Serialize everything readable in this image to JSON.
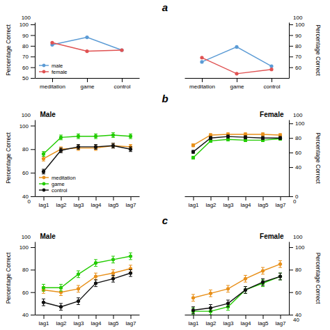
{
  "chart_data": [
    {
      "type": "line",
      "categories": [
        "meditation",
        "game",
        "control"
      ],
      "series": [
        {
          "name": "male",
          "color": "#5B9BD5",
          "values": [
            81,
            88,
            76
          ]
        },
        {
          "name": "female",
          "color": "#E05252",
          "values": [
            83,
            75,
            76
          ]
        }
      ],
      "ylabel": "Percentage Correct",
      "ylim": [
        50,
        102
      ],
      "yticks": [
        50,
        60,
        70,
        80,
        90,
        100
      ],
      "legend": "lower left",
      "marker": "circle",
      "annotations": [
        {
          "text": "100",
          "y": 102
        }
      ]
    },
    {
      "type": "line",
      "categories": [
        "meditation",
        "game",
        "control"
      ],
      "series": [
        {
          "color": "#5B9BD5",
          "values": [
            65,
            79,
            61
          ]
        },
        {
          "color": "#E05252",
          "values": [
            69,
            54,
            58
          ]
        }
      ],
      "ylabel": "Percentage Correct",
      "ylim": [
        50,
        102
      ],
      "yticks": [
        60,
        70,
        80,
        90,
        100
      ],
      "marker": "circle",
      "annotations": [
        {
          "text": "a"
        },
        {
          "text": "100",
          "y": 102
        }
      ]
    },
    {
      "type": "line",
      "title": "Male",
      "categories": [
        "lag1",
        "lag2",
        "lag3",
        "lag4",
        "lag5",
        "lag7"
      ],
      "series": [
        {
          "name": "meditation",
          "color": "#E8901A",
          "values": [
            72,
            80,
            81,
            81,
            83,
            82
          ],
          "errors": [
            2,
            2,
            2,
            2,
            2,
            2
          ]
        },
        {
          "name": "game",
          "color": "#22CC00",
          "values": [
            76,
            90,
            91,
            91,
            92,
            91
          ],
          "errors": [
            2,
            2,
            2,
            2,
            2,
            2
          ]
        },
        {
          "name": "control",
          "color": "#111111",
          "values": [
            61,
            79,
            82,
            82,
            83,
            80
          ],
          "errors": [
            2,
            2,
            2,
            2,
            2,
            2
          ]
        }
      ],
      "ylabel": "Percentage Correct",
      "ylim": [
        40,
        105
      ],
      "yticks": [
        40,
        60,
        80,
        100
      ],
      "legend": "lower left",
      "marker": "circle",
      "annotations": [
        {
          "text": "b"
        },
        {
          "text": "0",
          "y": 40
        },
        {
          "text": "100",
          "y": 105
        }
      ]
    },
    {
      "type": "line",
      "title": "Female",
      "categories": [
        "lag1",
        "lag2",
        "lag3",
        "lag4",
        "lag5",
        "lag7"
      ],
      "series": [
        {
          "color": "#E8901A",
          "values": [
            70,
            84,
            85,
            85,
            85,
            84
          ],
          "errors": [
            2,
            2,
            2,
            2,
            2,
            2
          ]
        },
        {
          "color": "#22CC00",
          "values": [
            53,
            76,
            78,
            77,
            77,
            79
          ],
          "errors": [
            2,
            2,
            2,
            2,
            2,
            2
          ]
        },
        {
          "color": "#111111",
          "values": [
            61,
            80,
            82,
            81,
            80,
            80
          ],
          "errors": [
            2,
            2,
            2,
            2,
            2,
            2
          ]
        }
      ],
      "ylabel": "Percentage Correct",
      "ylim": [
        0,
        105
      ],
      "yticks": [
        0,
        40,
        60,
        80,
        100
      ],
      "marker": "circle",
      "annotations": [
        {
          "text": "100",
          "y": 105
        },
        {
          "text": "0",
          "y": 0
        }
      ]
    },
    {
      "type": "line",
      "title": "Male",
      "categories": [
        "lag1",
        "lag2",
        "lag3",
        "lag4",
        "lag5",
        "lag7"
      ],
      "series": [
        {
          "color": "#E8901A",
          "values": [
            62,
            60,
            63,
            74,
            77,
            81
          ],
          "errors": [
            3,
            3,
            3,
            3,
            3,
            3
          ]
        },
        {
          "color": "#22CC00",
          "values": [
            64,
            64,
            76,
            86,
            89,
            92
          ],
          "errors": [
            3,
            3,
            3,
            3,
            3,
            3
          ]
        },
        {
          "color": "#111111",
          "values": [
            51,
            47,
            52,
            68,
            72,
            77
          ],
          "errors": [
            3,
            3,
            3,
            3,
            3,
            3
          ]
        }
      ],
      "ylabel": "Percentage Correct",
      "ylim": [
        40,
        105
      ],
      "yticks": [
        40,
        60,
        80,
        100
      ],
      "marker": "circle",
      "annotations": [
        {
          "text": "c"
        },
        {
          "text": "100",
          "y": 105
        }
      ]
    },
    {
      "type": "line",
      "title": "Female",
      "categories": [
        "lag1",
        "lag2",
        "lag3",
        "lag4",
        "lag5",
        "lag7"
      ],
      "series": [
        {
          "color": "#E8901A",
          "values": [
            55,
            59,
            63,
            72,
            79,
            85
          ],
          "errors": [
            3,
            3,
            3,
            3,
            3,
            3
          ]
        },
        {
          "color": "#22CC00",
          "values": [
            43,
            43,
            47,
            62,
            68,
            74
          ],
          "errors": [
            3,
            3,
            3,
            3,
            3,
            3
          ]
        },
        {
          "color": "#111111",
          "values": [
            44,
            46,
            50,
            62,
            69,
            74
          ],
          "errors": [
            3,
            3,
            3,
            3,
            3,
            3
          ]
        }
      ],
      "ylabel": "Percentage Correct",
      "ylim": [
        40,
        105
      ],
      "yticks": [
        40,
        60,
        80,
        100
      ],
      "marker": "circle",
      "annotations": [
        {
          "text": "100",
          "y": 105
        },
        {
          "text": "40",
          "y": 40
        }
      ]
    }
  ]
}
